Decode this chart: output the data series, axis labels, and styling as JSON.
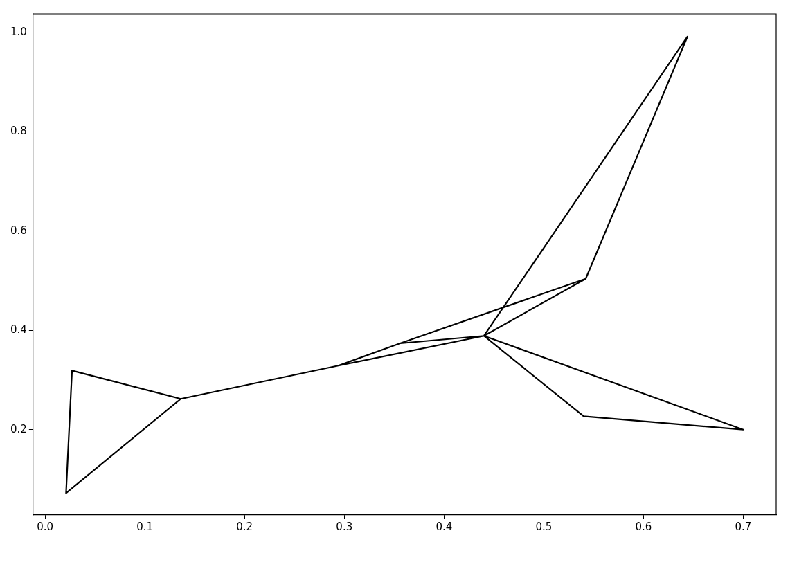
{
  "chart_data": {
    "type": "line",
    "x": [
      0.136,
      0.021,
      0.027,
      0.136,
      0.294,
      0.356,
      0.542,
      0.644,
      0.44,
      0.542,
      0.44,
      0.54,
      0.7,
      0.44,
      0.356,
      0.44,
      0.294
    ],
    "series": [
      {
        "color": "#000000",
        "values": [
          0.262,
          0.072,
          0.319,
          0.262,
          0.329,
          0.374,
          0.504,
          0.992,
          0.389,
          0.504,
          0.389,
          0.227,
          0.2,
          0.389,
          0.374,
          0.389,
          0.329
        ]
      }
    ],
    "xlim": [
      -0.012,
      0.733
    ],
    "ylim": [
      0.028,
      1.038
    ],
    "xticks": [
      {
        "value": 0,
        "label": "0.0"
      },
      0.1,
      0.2,
      0.3,
      0.4,
      0.5,
      0.6,
      0.7
    ],
    "yticks": [
      0.2,
      0.4,
      0.6,
      0.8,
      {
        "value": 1,
        "label": "1.0"
      }
    ],
    "grid": false,
    "legend": false,
    "marker": "none",
    "line_style": "solid"
  }
}
